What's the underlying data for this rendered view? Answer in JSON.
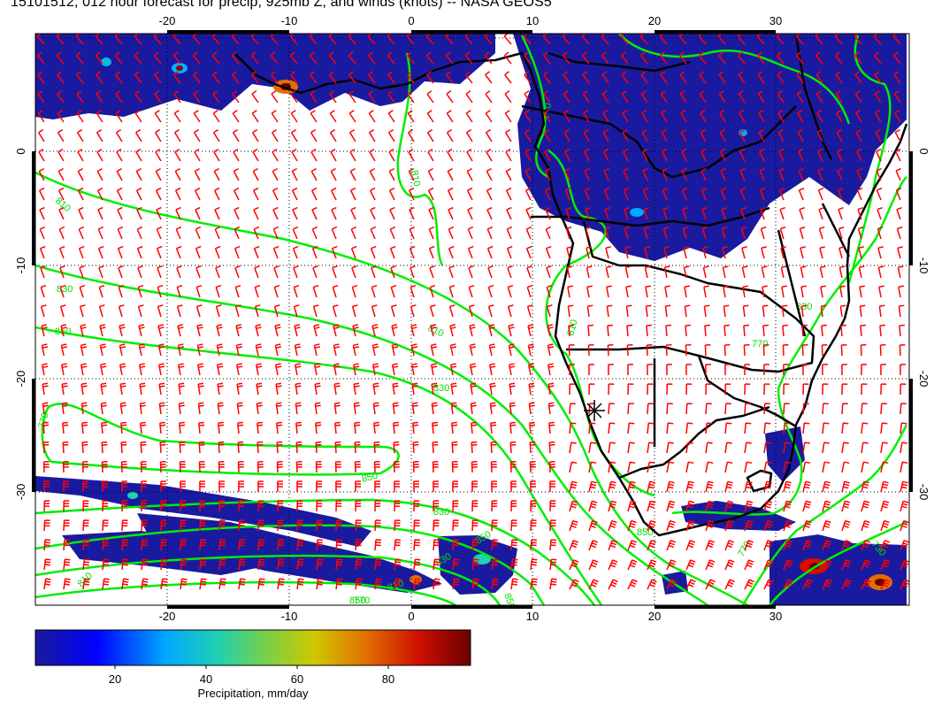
{
  "title": "15101512, 012 hour forecast for precip, 925mb Z, and winds (knots) -- NASA GEOS5",
  "map": {
    "lon_ticks": [
      "-20",
      "-10",
      "0",
      "10",
      "20",
      "30"
    ],
    "lat_ticks": [
      "0",
      "-10",
      "-20",
      "-30"
    ],
    "contour_labels": [
      "770",
      "810",
      "830",
      "850",
      "810",
      "830",
      "850",
      "770",
      "810",
      "830",
      "850",
      "830",
      "810",
      "770",
      "810",
      "850",
      "810",
      "770",
      "770",
      "830",
      "850",
      "730",
      "850"
    ],
    "marker": "station-star-icon"
  },
  "colorbar": {
    "ticks": [
      "20",
      "40",
      "60",
      "80"
    ],
    "label": "Precipitation, mm/day",
    "colors": [
      "#1a1a9a",
      "#0000ff",
      "#00b0ff",
      "#20d0b0",
      "#80d040",
      "#d0c800",
      "#e07000",
      "#d01000",
      "#6a0000"
    ]
  },
  "colors": {
    "wind_barbs": "#ff0000",
    "height_contours": "#00ee00",
    "precip_fill": "#1a1aa0",
    "coastlines": "#000000"
  }
}
